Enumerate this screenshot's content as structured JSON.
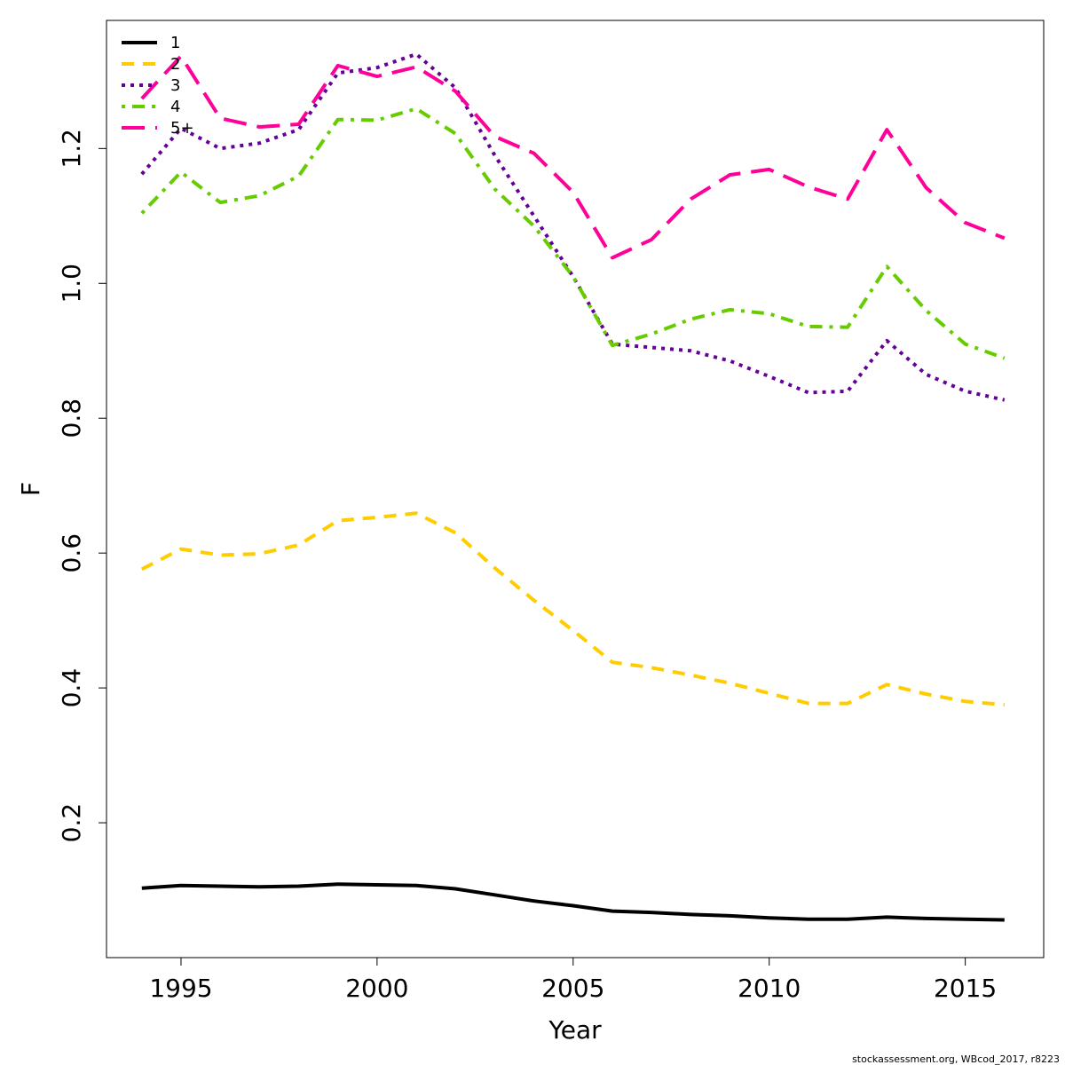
{
  "chart_data": {
    "type": "line",
    "xlabel": "Year",
    "ylabel": "F",
    "xlim": [
      1993.1,
      2017.0
    ],
    "ylim": [
      0.0,
      1.39
    ],
    "x_ticks": [
      1995,
      2000,
      2005,
      2010,
      2015
    ],
    "y_ticks": [
      0.2,
      0.4,
      0.6,
      0.8,
      1.0,
      1.2
    ],
    "x_tick_labels": [
      "1995",
      "2000",
      "2005",
      "2010",
      "2015"
    ],
    "y_tick_labels": [
      "0.2",
      "0.4",
      "0.6",
      "0.8",
      "1.0",
      "1.2"
    ],
    "legend_position": "top-left",
    "grid": false,
    "x": [
      1994,
      1995,
      1996,
      1997,
      1998,
      1999,
      2000,
      2001,
      2002,
      2003,
      2004,
      2005,
      2006,
      2007,
      2008,
      2009,
      2010,
      2011,
      2012,
      2013,
      2014,
      2015,
      2016
    ],
    "series": [
      {
        "name": "1",
        "color": "#000000",
        "dash": "solid",
        "values": [
          0.103,
          0.107,
          0.106,
          0.105,
          0.106,
          0.109,
          0.108,
          0.107,
          0.102,
          0.093,
          0.084,
          0.077,
          0.069,
          0.067,
          0.064,
          0.062,
          0.059,
          0.057,
          0.057,
          0.06,
          0.058,
          0.057,
          0.056
        ]
      },
      {
        "name": "2",
        "color": "#FFCC00",
        "dash": "dashed",
        "values": [
          0.576,
          0.606,
          0.597,
          0.599,
          0.612,
          0.648,
          0.653,
          0.659,
          0.63,
          0.578,
          0.53,
          0.485,
          0.438,
          0.43,
          0.419,
          0.407,
          0.392,
          0.377,
          0.377,
          0.405,
          0.391,
          0.38,
          0.375
        ]
      },
      {
        "name": "3",
        "color": "#660099",
        "dash": "dotted",
        "values": [
          1.162,
          1.23,
          1.2,
          1.208,
          1.228,
          1.312,
          1.32,
          1.34,
          1.29,
          1.19,
          1.1,
          1.01,
          0.91,
          0.905,
          0.9,
          0.885,
          0.862,
          0.838,
          0.84,
          0.915,
          0.865,
          0.84,
          0.827
        ]
      },
      {
        "name": "4",
        "color": "#66CC00",
        "dash": "dotdash",
        "values": [
          1.104,
          1.165,
          1.12,
          1.13,
          1.159,
          1.243,
          1.242,
          1.259,
          1.222,
          1.14,
          1.085,
          1.01,
          0.908,
          0.925,
          0.947,
          0.961,
          0.955,
          0.936,
          0.935,
          1.025,
          0.96,
          0.91,
          0.889
        ]
      },
      {
        "name": "5+",
        "color": "#FF0099",
        "dash": "longdash",
        "values": [
          1.274,
          1.337,
          1.245,
          1.232,
          1.236,
          1.323,
          1.307,
          1.321,
          1.285,
          1.218,
          1.193,
          1.135,
          1.038,
          1.065,
          1.125,
          1.161,
          1.169,
          1.143,
          1.125,
          1.228,
          1.142,
          1.09,
          1.067
        ]
      }
    ],
    "annotation": "stockassessment.org, WBcod_2017, r8223"
  }
}
